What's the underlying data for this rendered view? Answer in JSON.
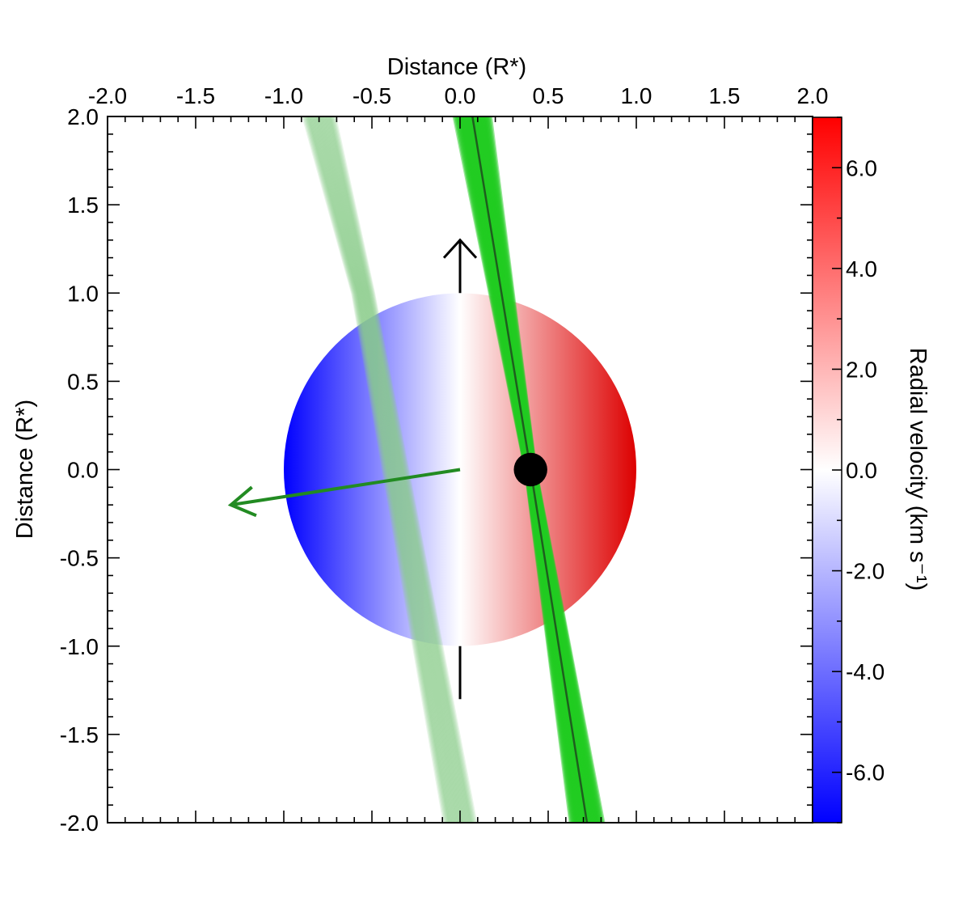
{
  "chart_data": {
    "type": "scatter",
    "xlabel_top": "Distance (R*)",
    "ylabel": "Distance (R*)",
    "colorbar_label": "Radial velocity (km s⁻¹)",
    "xlim": [
      -2.0,
      2.0
    ],
    "ylim": [
      -2.0,
      2.0
    ],
    "x_tick_labels": [
      "-2.0",
      "-1.5",
      "-1.0",
      "-0.5",
      "0.0",
      "0.5",
      "1.0",
      "1.5",
      "2.0"
    ],
    "y_tick_labels": [
      "-2.0",
      "-1.5",
      "-1.0",
      "-0.5",
      "0.0",
      "0.5",
      "1.0",
      "1.5",
      "2.0"
    ],
    "colorbar": {
      "range": [
        -7.0,
        7.0
      ],
      "tick_labels": [
        "-6.0",
        "-4.0",
        "-2.0",
        "0.0",
        "2.0",
        "4.0",
        "6.0"
      ],
      "colors": {
        "min": "#0000ff",
        "mid": "#ffffff",
        "max": "#dd0000"
      }
    },
    "star": {
      "center": [
        0.0,
        0.0
      ],
      "radius": 1.0,
      "vmax": 7.0
    },
    "stellar_spin_axis": {
      "from_top": [
        0.0,
        1.0
      ],
      "to_top": [
        0.0,
        1.3
      ],
      "from_bottom": [
        0.0,
        -1.0
      ],
      "to_bottom": [
        0.0,
        -1.3
      ],
      "color": "#000000"
    },
    "orbit_normal_arrow": {
      "from": [
        0.0,
        0.0
      ],
      "to": [
        -1.3,
        -0.2
      ],
      "color": "#228b22"
    },
    "transit_chord": {
      "points": [
        [
          0.07,
          2.0
        ],
        [
          0.4,
          0.0
        ],
        [
          0.72,
          -2.0
        ]
      ],
      "band_color": "#22cc22",
      "line_color": "#1e5e1e"
    },
    "secondary_chord": {
      "points": [
        [
          -0.8,
          2.0
        ],
        [
          -0.55,
          1.0
        ],
        [
          0.0,
          -2.0
        ]
      ],
      "band_color": "#88cc88"
    },
    "planet": {
      "position": [
        0.4,
        0.0
      ],
      "radius": 0.095,
      "color": "#000000"
    }
  }
}
